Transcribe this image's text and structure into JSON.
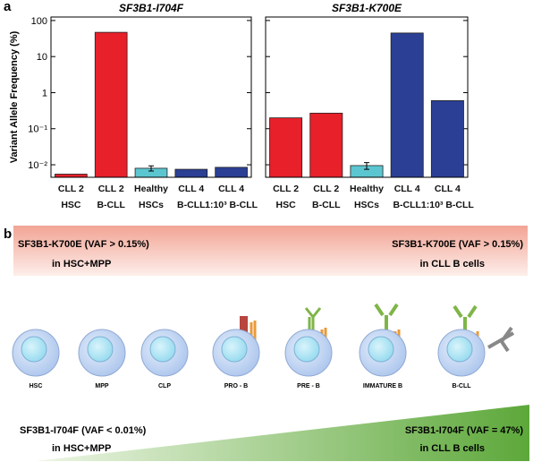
{
  "panel_labels": [
    "a",
    "b"
  ],
  "chart_data": [
    {
      "type": "bar",
      "title": "SF3B1-I704F",
      "ylabel": "Variant Allele Frequency (%)",
      "log_scale": true,
      "tick_labels": true,
      "categories": [
        "CLL 2\nHSC",
        "CLL 2\nB-CLL",
        "Healthy\nHSCs",
        "CLL 4\nB-CLL",
        "CLL 4\n1:10³ B-CLL"
      ],
      "values": [
        0.0055,
        47,
        0.008,
        0.0075,
        0.0085
      ],
      "errors": [
        null,
        null,
        0.0013,
        null,
        null
      ],
      "colors": [
        "#e8202a",
        "#e8202a",
        "#5cc6d0",
        "#2b3f94",
        "#2b3f94"
      ],
      "ylim": [
        0.0045,
        125
      ],
      "yticks": [
        {
          "value": 0.01,
          "label": "10⁻²"
        },
        {
          "value": 0.1,
          "label": "10⁻¹"
        },
        1,
        10,
        100
      ]
    },
    {
      "type": "bar",
      "title": "SF3B1-K700E",
      "log_scale": true,
      "tick_labels": false,
      "categories": [
        "CLL 2\nHSC",
        "CLL 2\nB-CLL",
        "Healthy\nHSCs",
        "CLL 4\nB-CLL",
        "CLL 4\n1:10³ B-CLL"
      ],
      "values": [
        0.2,
        0.27,
        0.0095,
        45,
        0.6
      ],
      "errors": [
        null,
        null,
        0.002,
        null,
        null
      ],
      "colors": [
        "#e8202a",
        "#e8202a",
        "#5cc6d0",
        "#2b3f94",
        "#2b3f94"
      ],
      "ylim": [
        0.0045,
        125
      ],
      "yticks": [
        0.01,
        0.1,
        1,
        10,
        100
      ]
    }
  ],
  "diagram": {
    "top_banner": {
      "left": [
        "SF3B1-K700E (VAF > 0.15%)",
        "in HSC+MPP"
      ],
      "right": [
        "SF3B1-K700E (VAF > 0.15%)",
        "in CLL B cells"
      ]
    },
    "cells": [
      "HSC",
      "MPP",
      "CLP",
      "PRO - B",
      "PRE - B",
      "IMMATURE B",
      "B-CLL"
    ],
    "bottom_banner": {
      "left": [
        "SF3B1-I704F (VAF < 0.01%)",
        "in HSC+MPP"
      ],
      "right": [
        "SF3B1-I704F (VAF = 47%)",
        "in CLL B cells"
      ]
    }
  }
}
